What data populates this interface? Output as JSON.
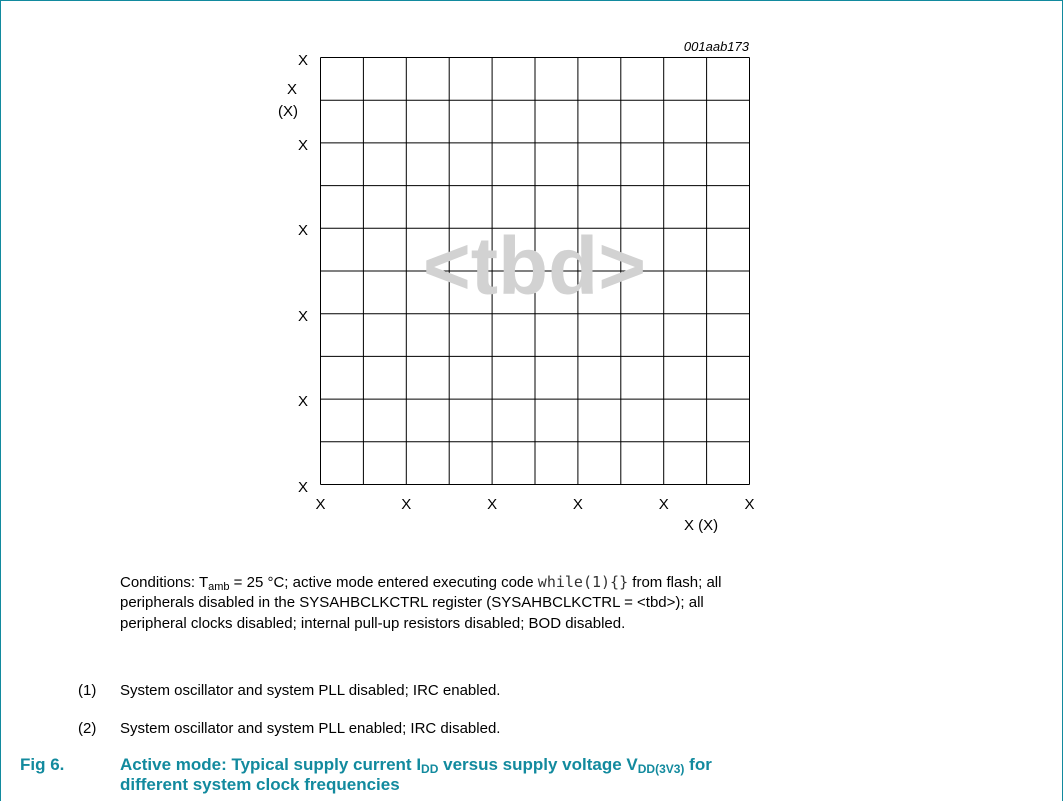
{
  "figure": {
    "figure_id": "001aab173",
    "watermark": "<tbd>",
    "y_axis": {
      "label": "X",
      "unit": "(X)",
      "ticks": [
        "X",
        "X",
        "X",
        "X",
        "X",
        "X"
      ]
    },
    "x_axis": {
      "label": "X (X)",
      "ticks": [
        "X",
        "X",
        "X",
        "X",
        "X",
        "X"
      ]
    }
  },
  "conditions": {
    "lines": [
      [
        "Conditions: T",
        "amb",
        " = 25 °C; active mode entered executing code ",
        "while(1){}",
        " from flash; all"
      ],
      [
        "peripherals disabled in the SYSAHBCLKCTRL register (SYSAHBCLKCTRL = <tbd>); all"
      ],
      [
        "peripheral clocks disabled; internal pull-up resistors disabled; BOD disabled."
      ]
    ]
  },
  "notes": [
    {
      "number": "(1)",
      "text": "System oscillator and system PLL disabled; IRC enabled."
    },
    {
      "number": "(2)",
      "text": "System oscillator and system PLL enabled; IRC disabled."
    }
  ],
  "caption": {
    "label": "Fig 6.",
    "line1": [
      "Active mode: Typical supply current I",
      "DD",
      " versus supply voltage V",
      "DD(3V3)",
      " for"
    ],
    "line2": "different system clock frequencies"
  }
}
